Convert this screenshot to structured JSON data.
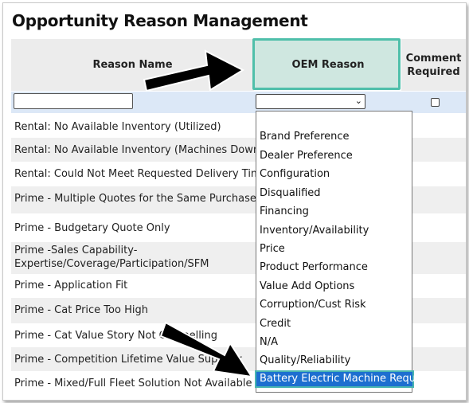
{
  "page": {
    "title": "Opportunity Reason Management"
  },
  "table": {
    "headers": {
      "reason_name": "Reason Name",
      "oem_reason": "OEM Reason",
      "comment_required": "Comment Required"
    },
    "filter": {
      "reason_name_value": "",
      "oem_reason_value": "",
      "comment_required_checked": false
    },
    "rows": [
      "Rental: No Available Inventory (Utilized)",
      "Rental: No Available Inventory (Machines Down)",
      "Rental: Could Not Meet Requested Delivery Time",
      "Prime - Multiple Quotes for the Same Purchase",
      "Prime - Budgetary Quote Only",
      "Prime -Sales Capability-Expertise/Coverage/Participation/SFM",
      "Prime - Application Fit",
      "Prime - Cat Price Too High",
      "Prime - Cat Value Story Not Compelling",
      "Prime - Competition Lifetime Value Superior",
      "Prime - Mixed/Full Fleet Solution Not Available"
    ]
  },
  "dropdown": {
    "options": [
      "",
      "Brand Preference",
      "Dealer Preference",
      "Configuration",
      "Disqualified",
      "Financing",
      "Inventory/Availability",
      "Price",
      "Product Performance",
      "Value Add Options",
      "Corruption/Cust Risk",
      "Credit",
      "N/A",
      "Quality/Reliability"
    ],
    "highlighted_option": "Battery Electric Machine Required"
  },
  "colors": {
    "header_bg": "#ececec",
    "oem_highlight_border": "#4fbfaa",
    "oem_highlight_fill": "#cfe7e0",
    "filter_row_bg": "#dce8f7",
    "selected_option_bg": "#1d6fd0"
  }
}
